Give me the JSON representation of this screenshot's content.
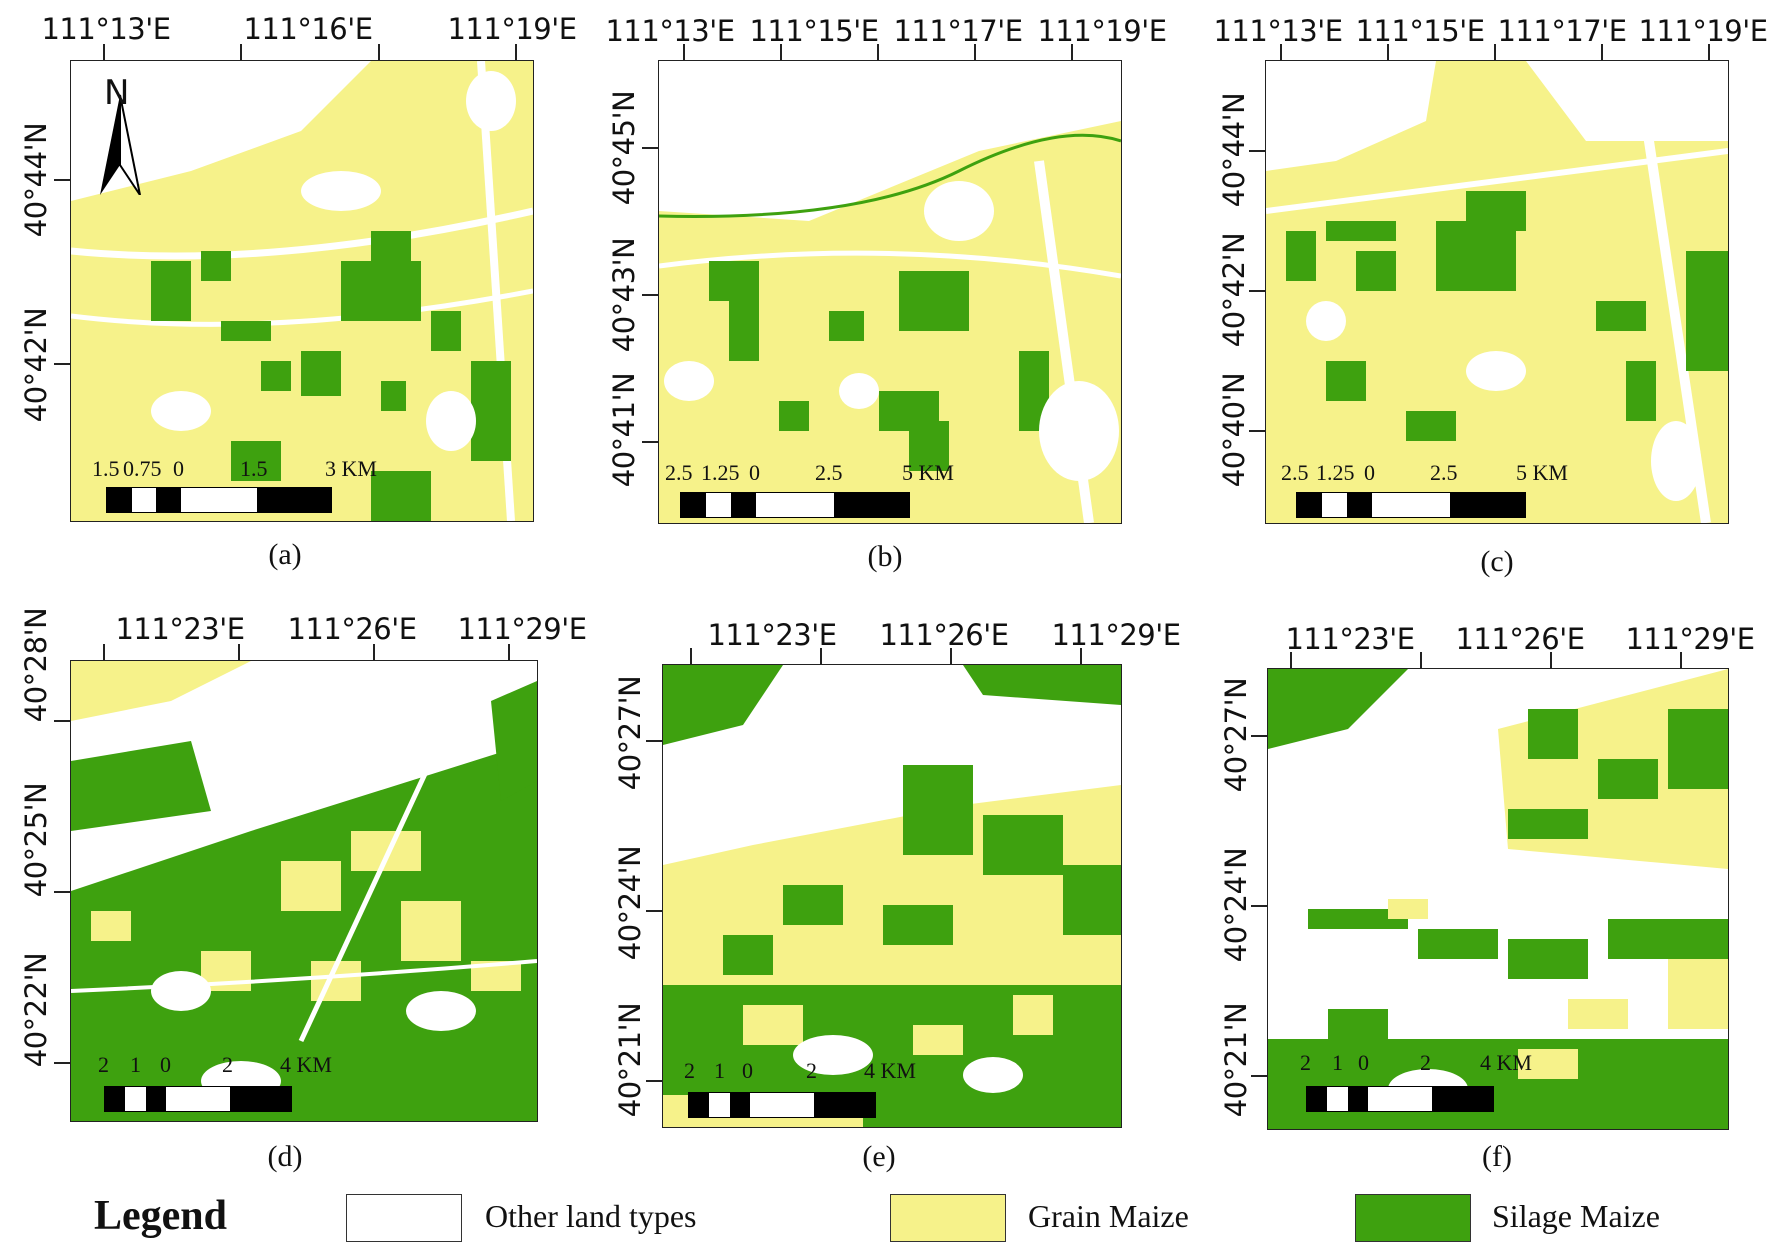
{
  "colors": {
    "other": "#ffffff",
    "grain": "#f6f28a",
    "silage": "#3ea10f"
  },
  "north_arrow_label": "N",
  "panels": [
    {
      "caption": "(a)",
      "lon": [
        "111°13'E",
        "111°16'E",
        "111°19'E"
      ],
      "lat": [
        "40°44'N",
        "40°42'N"
      ],
      "scale": [
        "1.5",
        "0.75",
        "0",
        "1.5",
        "3 KM"
      ]
    },
    {
      "caption": "(b)",
      "lon": [
        "111°13'E",
        "111°15'E",
        "111°17'E",
        "111°19'E"
      ],
      "lat": [
        "40°45'N",
        "40°43'N",
        "40°41'N"
      ],
      "scale": [
        "2.5",
        "1.25",
        "0",
        "2.5",
        "5 KM"
      ]
    },
    {
      "caption": "(c)",
      "lon": [
        "111°13'E",
        "111°15'E",
        "111°17'E",
        "111°19'E"
      ],
      "lat": [
        "40°44'N",
        "40°42'N",
        "40°40'N"
      ],
      "scale": [
        "2.5",
        "1.25",
        "0",
        "2.5",
        "5 KM"
      ]
    },
    {
      "caption": "(d)",
      "lon": [
        "111°23'E",
        "111°26'E",
        "111°29'E"
      ],
      "lat": [
        "40°28'N",
        "40°25'N",
        "40°22'N"
      ],
      "scale": [
        "2",
        "1",
        "0",
        "2",
        "4 KM"
      ]
    },
    {
      "caption": "(e)",
      "lon": [
        "111°23'E",
        "111°26'E",
        "111°29'E"
      ],
      "lat": [
        "40°27'N",
        "40°24'N",
        "40°21'N"
      ],
      "scale": [
        "2",
        "1",
        "0",
        "2",
        "4 KM"
      ]
    },
    {
      "caption": "(f)",
      "lon": [
        "111°23'E",
        "111°26'E",
        "111°29'E"
      ],
      "lat": [
        "40°27'N",
        "40°24'N",
        "40°21'N"
      ],
      "scale": [
        "2",
        "1",
        "0",
        "2",
        "4 KM"
      ]
    }
  ],
  "legend": {
    "title": "Legend",
    "items": [
      {
        "label": "Other land types",
        "color": "#ffffff"
      },
      {
        "label": "Grain Maize",
        "color": "#f6f28a"
      },
      {
        "label": "Silage Maize",
        "color": "#3ea10f"
      }
    ]
  }
}
